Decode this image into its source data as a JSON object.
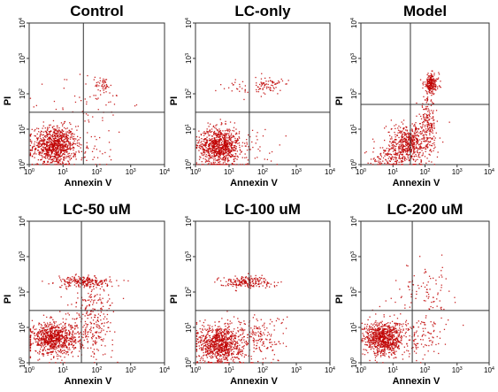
{
  "figure": {
    "layout": "2 rows x 3 columns of flow cytometry dot plots",
    "dot_color": "#c00000"
  },
  "chart_data": [
    {
      "type": "scatter",
      "title": "Control",
      "xlabel": "Annexin V",
      "ylabel": "PI",
      "x_scale": "log",
      "y_scale": "log",
      "xlim": [
        1,
        10000
      ],
      "ylim": [
        1,
        10000
      ],
      "x_ticks": [
        "10^0",
        "10^1",
        "10^2",
        "10^3",
        "10^4"
      ],
      "y_ticks": [
        "10^0",
        "10^1",
        "10^2",
        "10^3",
        "10^4"
      ],
      "quadrant_gate": {
        "x": 40,
        "y": 30
      },
      "clusters": [
        {
          "x": 5.5,
          "y": 3.5,
          "spread_x": 0.32,
          "spread_y": 0.28,
          "count": 900
        },
        {
          "x": 150,
          "y": 180,
          "spread_x": 0.12,
          "spread_y": 0.12,
          "count": 40
        },
        {
          "x": 60,
          "y": 60,
          "spread_x": 0.6,
          "spread_y": 0.45,
          "count": 60
        },
        {
          "x": 60,
          "y": 2.5,
          "spread_x": 0.45,
          "spread_y": 0.3,
          "count": 40
        }
      ]
    },
    {
      "type": "scatter",
      "title": "LC-only",
      "xlabel": "Annexin V",
      "ylabel": "PI",
      "x_scale": "log",
      "y_scale": "log",
      "xlim": [
        1,
        10000
      ],
      "ylim": [
        1,
        10000
      ],
      "x_ticks": [
        "10^0",
        "10^1",
        "10^2",
        "10^3",
        "10^4"
      ],
      "y_ticks": [
        "10^0",
        "10^1",
        "10^2",
        "10^3",
        "10^4"
      ],
      "quadrant_gate": {
        "x": 40,
        "y": 30
      },
      "clusters": [
        {
          "x": 5,
          "y": 3.5,
          "spread_x": 0.3,
          "spread_y": 0.26,
          "count": 850
        },
        {
          "x": 150,
          "y": 180,
          "spread_x": 0.2,
          "spread_y": 0.12,
          "count": 70
        },
        {
          "x": 25,
          "y": 160,
          "spread_x": 0.35,
          "spread_y": 0.12,
          "count": 30
        },
        {
          "x": 50,
          "y": 3,
          "spread_x": 0.4,
          "spread_y": 0.3,
          "count": 50
        }
      ]
    },
    {
      "type": "scatter",
      "title": "Model",
      "xlabel": "Annexin V",
      "ylabel": "PI",
      "x_scale": "log",
      "y_scale": "log",
      "xlim": [
        1,
        10000
      ],
      "ylim": [
        1,
        10000
      ],
      "x_ticks": [
        "10^0",
        "10^1",
        "10^2",
        "10^3",
        "10^4"
      ],
      "y_ticks": [
        "10^0",
        "10^1",
        "10^2",
        "10^3",
        "10^4"
      ],
      "quadrant_gate": {
        "x": 35,
        "y": 50
      },
      "clusters": [
        {
          "x": 30,
          "y": 4,
          "spread_x": 0.35,
          "spread_y": 0.28,
          "count": 550
        },
        {
          "x": 150,
          "y": 200,
          "spread_x": 0.12,
          "spread_y": 0.14,
          "count": 200
        },
        {
          "x": 120,
          "y": 15,
          "spread_x": 0.12,
          "spread_y": 0.35,
          "count": 180
        },
        {
          "x": 8,
          "y": 1.6,
          "spread_x": 0.3,
          "spread_y": 0.15,
          "count": 120
        }
      ]
    },
    {
      "type": "scatter",
      "title": "LC-50 uM",
      "xlabel": "Annexin V",
      "ylabel": "PI",
      "x_scale": "log",
      "y_scale": "log",
      "xlim": [
        1,
        10000
      ],
      "ylim": [
        1,
        10000
      ],
      "x_ticks": [
        "10^0",
        "10^1",
        "10^2",
        "10^3",
        "10^4"
      ],
      "y_ticks": [
        "10^0",
        "10^1",
        "10^2",
        "10^3",
        "10^4"
      ],
      "quadrant_gate": {
        "x": 35,
        "y": 30
      },
      "clusters": [
        {
          "x": 5,
          "y": 5,
          "spread_x": 0.32,
          "spread_y": 0.22,
          "count": 800
        },
        {
          "x": 40,
          "y": 200,
          "spread_x": 0.4,
          "spread_y": 0.08,
          "count": 220
        },
        {
          "x": 60,
          "y": 8,
          "spread_x": 0.35,
          "spread_y": 0.35,
          "count": 200
        },
        {
          "x": 90,
          "y": 60,
          "spread_x": 0.35,
          "spread_y": 0.3,
          "count": 100
        }
      ]
    },
    {
      "type": "scatter",
      "title": "LC-100 uM",
      "xlabel": "Annexin V",
      "ylabel": "PI",
      "x_scale": "log",
      "y_scale": "log",
      "xlim": [
        1,
        10000
      ],
      "ylim": [
        1,
        10000
      ],
      "x_ticks": [
        "10^0",
        "10^1",
        "10^2",
        "10^3",
        "10^4"
      ],
      "y_ticks": [
        "10^0",
        "10^1",
        "10^2",
        "10^3",
        "10^4"
      ],
      "quadrant_gate": {
        "x": 40,
        "y": 30
      },
      "clusters": [
        {
          "x": 5,
          "y": 3.5,
          "spread_x": 0.32,
          "spread_y": 0.28,
          "count": 850
        },
        {
          "x": 30,
          "y": 200,
          "spread_x": 0.4,
          "spread_y": 0.08,
          "count": 200
        },
        {
          "x": 70,
          "y": 5,
          "spread_x": 0.4,
          "spread_y": 0.35,
          "count": 180
        }
      ]
    },
    {
      "type": "scatter",
      "title": "LC-200 uM",
      "xlabel": "Annexin V",
      "ylabel": "PI",
      "x_scale": "log",
      "y_scale": "log",
      "xlim": [
        1,
        10000
      ],
      "ylim": [
        1,
        10000
      ],
      "x_ticks": [
        "10^0",
        "10^1",
        "10^2",
        "10^3",
        "10^4"
      ],
      "y_ticks": [
        "10^0",
        "10^1",
        "10^2",
        "10^3",
        "10^4"
      ],
      "quadrant_gate": {
        "x": 40,
        "y": 30
      },
      "clusters": [
        {
          "x": 5,
          "y": 5,
          "spread_x": 0.3,
          "spread_y": 0.24,
          "count": 800
        },
        {
          "x": 90,
          "y": 120,
          "spread_x": 0.45,
          "spread_y": 0.35,
          "count": 90
        },
        {
          "x": 70,
          "y": 5,
          "spread_x": 0.4,
          "spread_y": 0.3,
          "count": 120
        }
      ]
    }
  ]
}
